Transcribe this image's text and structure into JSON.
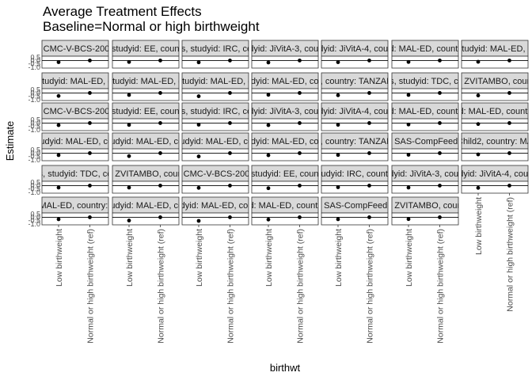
{
  "chart_data": {
    "type": "scatter",
    "title": "Average Treatment Effects",
    "subtitle": "Baseline=Normal or high birthweight",
    "xlabel": "birthwt",
    "ylabel": "Estimate",
    "categories": [
      "Low birthweight",
      "Normal or high birthweight (ref)"
    ],
    "y_ticks": [
      "0.5",
      "0.0",
      "-0.5",
      "-1.0"
    ],
    "ylim": [
      -1.15,
      0.65
    ],
    "grid": false,
    "panels": [
      {
        "strip": "d: CMC-V-BCS-2002,",
        "est": -0.25,
        "lo": -0.45,
        "hi": -0.05
      },
      {
        "strip": "s, studyid: EE, country",
        "est": -0.22,
        "lo": -0.42,
        "hi": -0.02
      },
      {
        "strip": "ths, studyid: IRC, cou",
        "est": -0.28,
        "lo": -0.45,
        "hi": -0.1
      },
      {
        "strip": "studyid: JiVitA-3, country",
        "est": -0.3,
        "lo": -0.4,
        "hi": -0.2
      },
      {
        "strip": "studyid: JiVitA-4, country",
        "est": -0.26,
        "lo": -0.36,
        "hi": -0.16
      },
      {
        "strip": "yid: MAL-ED, country:",
        "est": -0.22,
        "lo": -0.38,
        "hi": -0.06
      },
      {
        "strip": "studyid: MAL-ED, c",
        "est": -0.2,
        "lo": -0.35,
        "hi": -0.05
      },
      {
        "strip": "s, studyid: MAL-ED, cou",
        "est": -0.45,
        "lo": -0.6,
        "hi": -0.3
      },
      {
        "strip": "s, studyid: MAL-ED, cou",
        "est": -0.3,
        "lo": -0.5,
        "hi": -0.1
      },
      {
        "strip": "s, studyid: MAL-ED, cou",
        "est": -0.5,
        "lo": -0.7,
        "hi": -0.3
      },
      {
        "strip": "studyid: MAL-ED, count",
        "est": -0.28,
        "lo": -0.48,
        "hi": -0.08
      },
      {
        "strip": "ED, country: TANZANIA",
        "est": -0.35,
        "lo": -0.5,
        "hi": -0.2
      },
      {
        "strip": "ths, studyid: TDC, cou",
        "est": -0.3,
        "lo": -0.45,
        "hi": -0.15
      },
      {
        "strip": "yid: ZVITAMBO, country",
        "est": -0.38,
        "lo": -0.5,
        "hi": -0.26
      },
      {
        "strip": "d: CMC-V-BCS-2002,",
        "est": -0.32,
        "lo": -0.52,
        "hi": -0.12
      },
      {
        "strip": "s, studyid: EE, country",
        "est": -0.28,
        "lo": -0.5,
        "hi": -0.06
      },
      {
        "strip": "ths, studyid: IRC, cou",
        "est": -0.25,
        "lo": -0.42,
        "hi": -0.08
      },
      {
        "strip": "studyid: JiVitA-3, country",
        "est": -0.32,
        "lo": -0.42,
        "hi": -0.22
      },
      {
        "strip": "studyid: JiVitA-4, country",
        "est": -0.27,
        "lo": -0.37,
        "hi": -0.17
      },
      {
        "strip": "yid: MAL-ED, country:",
        "est": -0.22,
        "lo": -0.42,
        "hi": -0.02
      },
      {
        "strip": "yid: MAL-ED, country:",
        "est": -0.15,
        "lo": -0.4,
        "hi": 0.1
      },
      {
        "strip": "studyid: MAL-ED, cou",
        "est": -0.3,
        "lo": -0.5,
        "hi": -0.1
      },
      {
        "strip": "studyid: MAL-ED, cou",
        "est": -0.45,
        "lo": -0.6,
        "hi": -0.3
      },
      {
        "strip": "studyid: MAL-ED, cou",
        "est": -0.5,
        "lo": -0.65,
        "hi": -0.35
      },
      {
        "strip": "studyid: MAL-ED, count",
        "est": -0.32,
        "lo": -0.5,
        "hi": -0.14
      },
      {
        "strip": "ED, country: TANZANIA",
        "est": -0.28,
        "lo": -0.45,
        "hi": -0.11
      },
      {
        "strip": "yid: SAS-CompFeed, co",
        "est": -0.25,
        "lo": -0.4,
        "hi": -0.1
      },
      {
        "strip": "Child2, country: MA",
        "est": -0.2,
        "lo": -0.35,
        "hi": -0.05
      },
      {
        "strip": "hs, studyid: TDC, cou",
        "est": -0.3,
        "lo": -0.45,
        "hi": -0.15
      },
      {
        "strip": "yid: ZVITAMBO, country",
        "est": -0.3,
        "lo": -0.42,
        "hi": -0.18
      },
      {
        "strip": "d: CMC-V-BCS-2002,",
        "est": -0.35,
        "lo": -0.55,
        "hi": -0.15
      },
      {
        "strip": "s, studyid: EE, country",
        "est": -0.4,
        "lo": -0.65,
        "hi": -0.15
      },
      {
        "strip": "studyid: IRC, country",
        "est": -0.25,
        "lo": -0.45,
        "hi": -0.05
      },
      {
        "strip": "studyid: JiVitA-3, country",
        "est": -0.3,
        "lo": -0.42,
        "hi": -0.18
      },
      {
        "strip": "studyid: JiVitA-4, country",
        "est": -0.35,
        "lo": -0.45,
        "hi": -0.25
      },
      {
        "strip": ": MAL-ED, country: B",
        "est": -0.3,
        "lo": -0.5,
        "hi": -0.1
      },
      {
        "strip": "studyid: MAL-ED, cou",
        "est": -0.5,
        "lo": -0.7,
        "hi": -0.3
      },
      {
        "strip": "tudyid: MAL-ED, coun",
        "est": -0.55,
        "lo": -0.7,
        "hi": -0.4
      },
      {
        "strip": "yid: MAL-ED, country:",
        "est": -0.35,
        "lo": -0.6,
        "hi": -0.1
      },
      {
        "strip": "yid: SAS-CompFeed, co",
        "est": -0.3,
        "lo": -0.5,
        "hi": -0.1
      },
      {
        "strip": "yid: ZVITAMBO, country",
        "est": -0.28,
        "lo": -0.42,
        "hi": -0.14
      }
    ]
  }
}
